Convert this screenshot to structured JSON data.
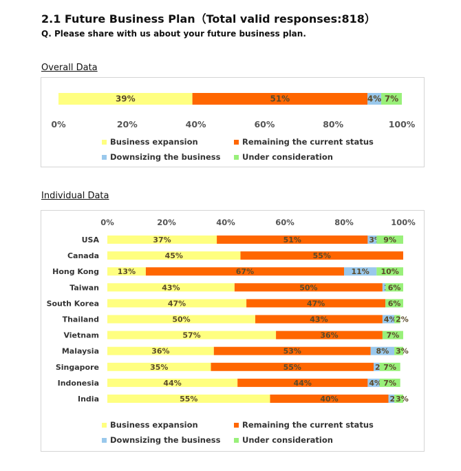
{
  "header": {
    "title": "2.1  Future Business Plan（Total valid responses:818）",
    "question": "Q. Please share with us about your future business plan."
  },
  "colors": {
    "Business expansion": "#ffff80",
    "Remaining the current status": "#ff6600",
    "Downsizing the business": "#99c8ec",
    "Under consideration": "#99f07a"
  },
  "chart_data": [
    {
      "type": "bar",
      "stacked": true,
      "orientation": "horizontal",
      "section_title": "Overall Data",
      "categories": [
        ""
      ],
      "series": [
        {
          "name": "Business expansion",
          "values": [
            39
          ]
        },
        {
          "name": "Remaining the current status",
          "values": [
            51
          ]
        },
        {
          "name": "Downsizing the business",
          "values": [
            4
          ]
        },
        {
          "name": "Under consideration",
          "values": [
            7
          ]
        }
      ],
      "xlim": [
        0,
        100
      ],
      "x_ticks": [
        "0%",
        "20%",
        "40%",
        "60%",
        "80%",
        "100%"
      ],
      "legend_position": "bottom"
    },
    {
      "type": "bar",
      "stacked": true,
      "orientation": "horizontal",
      "section_title": "Individual Data",
      "categories": [
        "USA",
        "Canada",
        "Hong Kong",
        "Taiwan",
        "South Korea",
        "Thailand",
        "Vietnam",
        "Malaysia",
        "Singapore",
        "Indonesia",
        "India"
      ],
      "series": [
        {
          "name": "Business expansion",
          "values": [
            37,
            45,
            13,
            43,
            47,
            50,
            57,
            36,
            35,
            44,
            55
          ]
        },
        {
          "name": "Remaining the current status",
          "values": [
            51,
            55,
            67,
            50,
            47,
            43,
            36,
            53,
            55,
            44,
            40
          ]
        },
        {
          "name": "Downsizing the business",
          "values": [
            3,
            0,
            11,
            1,
            0,
            4,
            0,
            8,
            2,
            4,
            2
          ]
        },
        {
          "name": "Under consideration",
          "values": [
            9,
            0,
            10,
            6,
            6,
            2,
            7,
            3,
            7,
            7,
            3
          ]
        }
      ],
      "xlim": [
        0,
        100
      ],
      "x_ticks": [
        "0%",
        "20%",
        "40%",
        "60%",
        "80%",
        "100%"
      ],
      "legend_position": "bottom"
    }
  ]
}
